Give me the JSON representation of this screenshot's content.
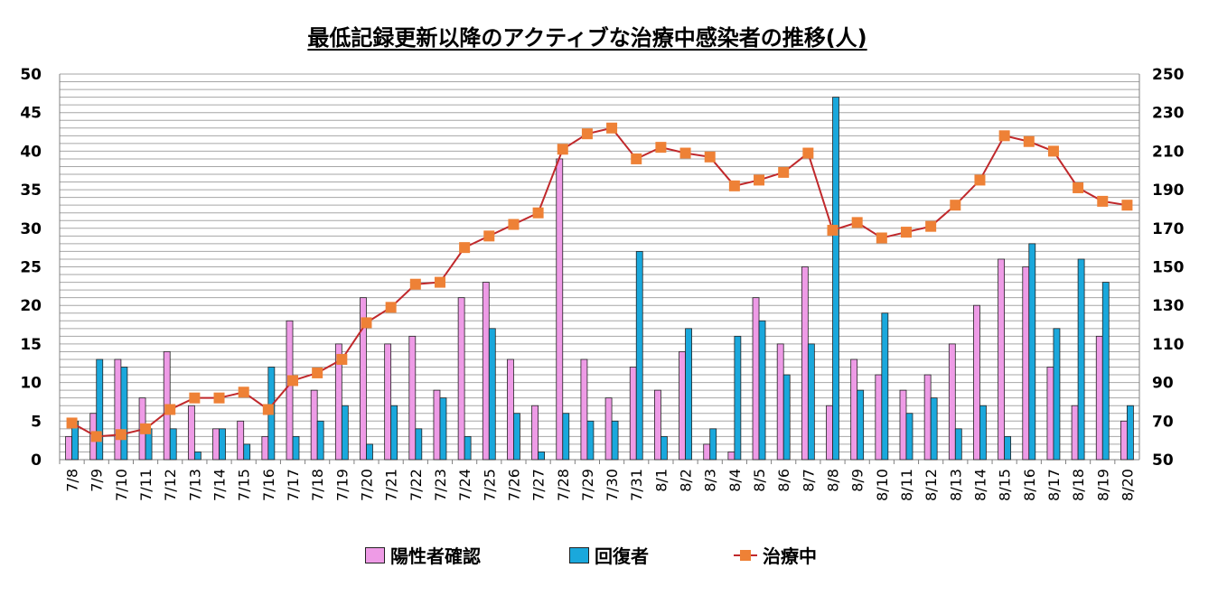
{
  "chart_data": {
    "type": "bar",
    "title": "最低記録更新以降のアクティブな治療中感染者の推移(人)",
    "categories": [
      "7/8",
      "7/9",
      "7/10",
      "7/11",
      "7/12",
      "7/13",
      "7/14",
      "7/15",
      "7/16",
      "7/17",
      "7/18",
      "7/19",
      "7/20",
      "7/21",
      "7/22",
      "7/23",
      "7/24",
      "7/25",
      "7/26",
      "7/27",
      "7/28",
      "7/29",
      "7/30",
      "7/31",
      "8/1",
      "8/2",
      "8/3",
      "8/4",
      "8/5",
      "8/6",
      "8/7",
      "8/8",
      "8/9",
      "8/10",
      "8/11",
      "8/12",
      "8/13",
      "8/14",
      "8/15",
      "8/16",
      "8/17",
      "8/18",
      "8/19",
      "8/20"
    ],
    "series": [
      {
        "name": "陽性者確認",
        "kind": "bar",
        "axis": "left",
        "color": "#ee9be6",
        "values": [
          3,
          6,
          13,
          8,
          14,
          7,
          4,
          5,
          3,
          18,
          9,
          15,
          21,
          15,
          16,
          9,
          21,
          23,
          13,
          7,
          39,
          13,
          8,
          12,
          9,
          14,
          2,
          1,
          21,
          15,
          25,
          7,
          13,
          11,
          9,
          11,
          15,
          20,
          26,
          25,
          12,
          7,
          16,
          5
        ]
      },
      {
        "name": "回復者",
        "kind": "bar",
        "axis": "left",
        "color": "#1aa8dc",
        "values": [
          5,
          13,
          12,
          4,
          4,
          1,
          4,
          2,
          12,
          3,
          5,
          7,
          2,
          7,
          4,
          8,
          3,
          17,
          6,
          1,
          6,
          5,
          5,
          27,
          3,
          17,
          4,
          16,
          18,
          11,
          15,
          47,
          9,
          19,
          6,
          8,
          4,
          7,
          3,
          28,
          17,
          26,
          23,
          7
        ]
      },
      {
        "name": "治療中",
        "kind": "line",
        "axis": "right",
        "color": "#c0282b",
        "marker_color": "#ee8136",
        "values": [
          69,
          62,
          63,
          66,
          76,
          82,
          82,
          85,
          76,
          91,
          95,
          102,
          121,
          129,
          141,
          142,
          160,
          166,
          172,
          178,
          211,
          219,
          222,
          206,
          212,
          209,
          207,
          192,
          195,
          199,
          209,
          169,
          173,
          165,
          168,
          171,
          182,
          195,
          218,
          215,
          210,
          191,
          184,
          182
        ]
      }
    ],
    "ylim": [
      0,
      50
    ],
    "yticks": [
      0,
      5,
      10,
      15,
      20,
      25,
      30,
      35,
      40,
      45,
      50
    ],
    "y2lim": [
      50,
      250
    ],
    "y2ticks": [
      50,
      70,
      90,
      110,
      130,
      150,
      170,
      190,
      210,
      230,
      250
    ],
    "grid": true,
    "legend_position": "bottom"
  }
}
